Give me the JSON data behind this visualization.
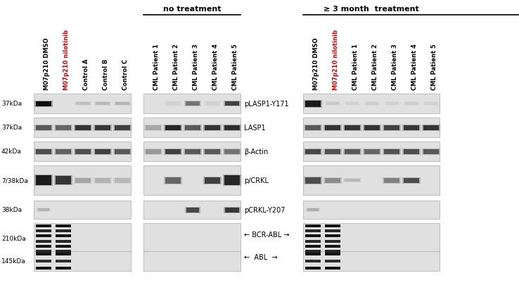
{
  "bg": "#ffffff",
  "no_treatment_label": "no treatment",
  "ge3month_label": "≥ 3 month  treatment",
  "nilotinib_color": "#cc0000",
  "black": "#000000",
  "gray_panel": "#d8d8d8",
  "col_labels_left": [
    "M07p210 DMSO",
    "M07p210 nilotinib",
    "Control A",
    "Control B",
    "Control C"
  ],
  "col_labels_mid": [
    "CML Patient 1",
    "CML Patient 2",
    "CML Patient 3",
    "CML Patient 4",
    "CML Patient 5"
  ],
  "col_labels_right": [
    "M07p210 DMSO",
    "M07p210 nilotinib",
    "CML Patient 1",
    "CML Patient 2",
    "CML Patient 3",
    "CML Patient 4",
    "CML Patient 5"
  ],
  "kda_labels": [
    "37kDa",
    "37kDa",
    "42kDa",
    "7/38kDa",
    "38kDa",
    "210kDa",
    "145kDa"
  ],
  "protein_labels": [
    "pLASP1-Y171",
    "LASP1",
    "β-Actin",
    "p/CRKL",
    "pCRKL-Y207",
    "BCR-ABL",
    "ABL"
  ],
  "fs_col": 6.0,
  "fs_kda": 6.5,
  "fs_prot": 7.0,
  "fs_bracket": 8.0
}
